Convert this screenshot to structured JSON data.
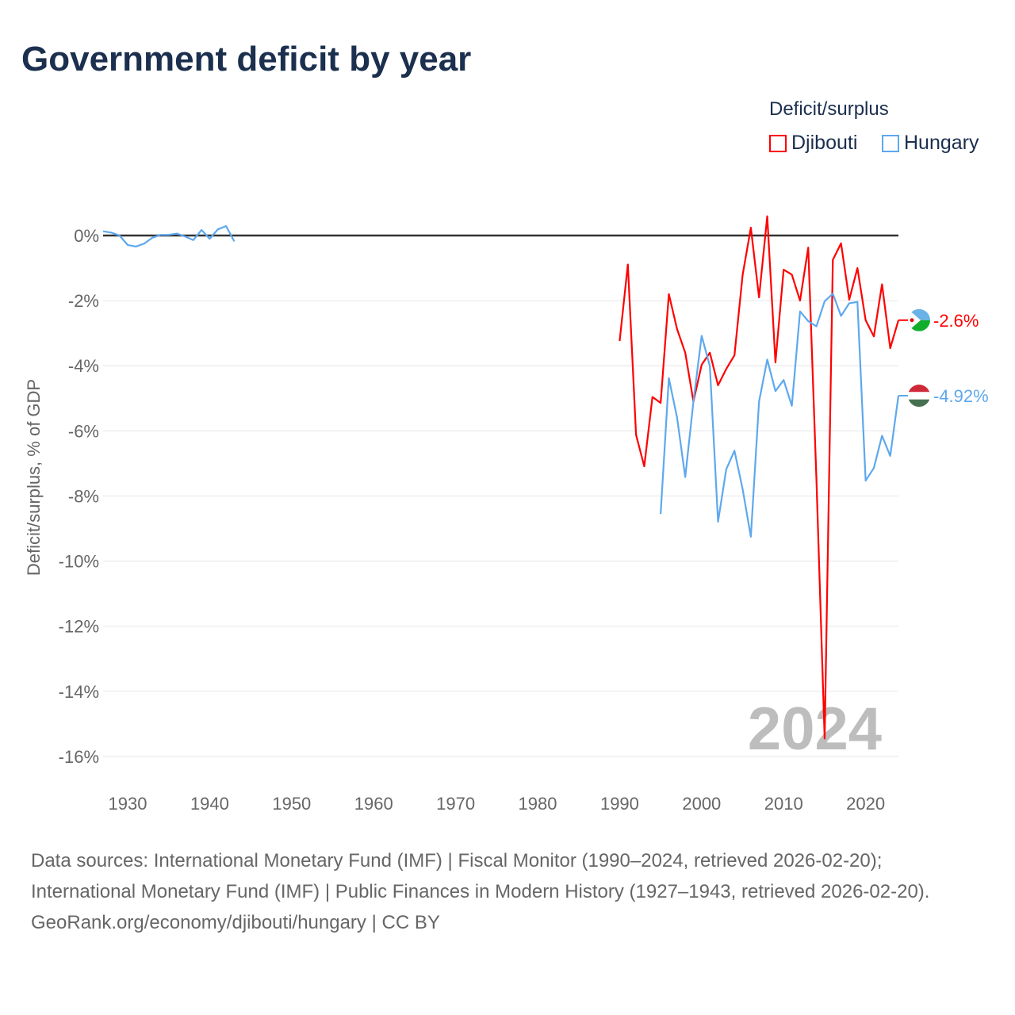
{
  "chart_data": {
    "type": "line",
    "title": "Government deficit by year",
    "ylabel": "Deficit/surplus, % of GDP",
    "xlabel": "",
    "xlim": [
      1927,
      2024
    ],
    "ylim": [
      -16,
      0
    ],
    "xticks": [
      "1930",
      "1940",
      "1950",
      "1960",
      "1970",
      "1980",
      "1990",
      "2000",
      "2010",
      "2020"
    ],
    "yticks": [
      "0%",
      "-2%",
      "-4%",
      "-6%",
      "-8%",
      "-10%",
      "-12%",
      "-14%",
      "-16%"
    ],
    "legend_title": "Deficit/surplus",
    "legend_position": "top-right",
    "year_watermark": "2024",
    "series": [
      {
        "name": "Djibouti",
        "color": "#ff0000",
        "end_label": "-2.6%",
        "x": [
          1990,
          1991,
          1992,
          1993,
          1994,
          1995,
          1996,
          1997,
          1998,
          1999,
          2000,
          2001,
          2002,
          2003,
          2004,
          2005,
          2006,
          2007,
          2008,
          2009,
          2010,
          2011,
          2012,
          2013,
          2014,
          2015,
          2016,
          2017,
          2018,
          2019,
          2020,
          2021,
          2022,
          2023,
          2024
        ],
        "y": [
          -3.24,
          -0.89,
          -6.12,
          -7.09,
          -4.96,
          -5.14,
          -1.8,
          -2.87,
          -3.6,
          -5.1,
          -3.97,
          -3.6,
          -4.6,
          -4.1,
          -3.68,
          -1.21,
          0.24,
          -1.9,
          0.59,
          -3.9,
          -1.05,
          -1.2,
          -2.0,
          -0.37,
          -7.5,
          -15.45,
          -0.75,
          -0.24,
          -1.97,
          -1.0,
          -2.6,
          -3.1,
          -1.5,
          -3.46,
          -2.6
        ]
      },
      {
        "name": "Hungary",
        "color": "#5ea8ee",
        "end_label": "-4.92%",
        "x": [
          1927,
          1928,
          1929,
          1930,
          1931,
          1932,
          1933,
          1934,
          1935,
          1936,
          1937,
          1938,
          1939,
          1940,
          1941,
          1942,
          1943,
          1995,
          1996,
          1997,
          1998,
          1999,
          2000,
          2001,
          2002,
          2003,
          2004,
          2005,
          2006,
          2007,
          2008,
          2009,
          2010,
          2011,
          2012,
          2013,
          2014,
          2015,
          2016,
          2017,
          2018,
          2019,
          2020,
          2021,
          2022,
          2023,
          2024
        ],
        "y": [
          0.13,
          0.09,
          0,
          -0.29,
          -0.34,
          -0.25,
          -0.07,
          0.02,
          0.02,
          0.06,
          -0.03,
          -0.14,
          0.17,
          -0.1,
          0.19,
          0.29,
          -0.18,
          -8.55,
          -4.38,
          -5.59,
          -7.42,
          -5.1,
          -3.08,
          -4.01,
          -8.79,
          -7.18,
          -6.61,
          -7.79,
          -9.25,
          -5.1,
          -3.81,
          -4.78,
          -4.44,
          -5.23,
          -2.33,
          -2.63,
          -2.79,
          -2.02,
          -1.79,
          -2.47,
          -2.08,
          -2.04,
          -7.53,
          -7.14,
          -6.15,
          -6.77,
          -4.92
        ],
        "gap_after": 1943
      }
    ]
  },
  "sources": {
    "line1": "Data sources: International Monetary Fund (IMF) | Fiscal Monitor (1990–2024, retrieved 2026-02-20);",
    "line2": "International Monetary Fund (IMF) | Public Finances in Modern History (1927–1943, retrieved 2026-02-20).",
    "line3": "GeoRank.org/economy/djibouti/hungary | CC BY"
  }
}
